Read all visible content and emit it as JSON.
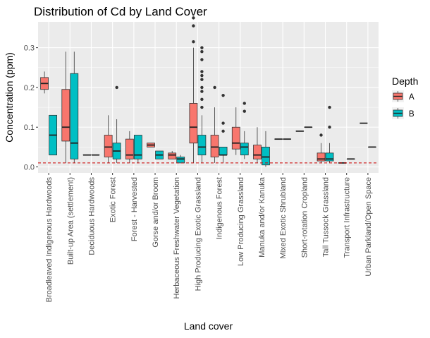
{
  "chart_data": {
    "type": "boxplot",
    "title": "Distribution of Cd by Land Cover",
    "xlabel": "Land cover",
    "ylabel": "Concentration (ppm)",
    "ylim": [
      -0.015,
      0.365
    ],
    "yticks": [
      0.0,
      0.1,
      0.2,
      0.3
    ],
    "ytick_labels": [
      "0.0",
      "0.1",
      "0.2",
      "0.3"
    ],
    "grid": true,
    "background": "#ebebeb",
    "reference_line": {
      "y": 0.01,
      "color": "#cc0000",
      "style": "dashed"
    },
    "legend": {
      "title": "Depth",
      "position": "right",
      "entries": [
        {
          "label": "A",
          "color": "#f8766d"
        },
        {
          "label": "B",
          "color": "#00bfc4"
        }
      ]
    },
    "categories": [
      "Broadleaved Indigenous Hardwoods",
      "Built-up Area (settlement)",
      "Deciduous Hardwoods",
      "Exotic Forest",
      "Forest - Harvested",
      "Gorse and/or Broom",
      "Herbaceous Freshwater Vegetation",
      "High Producing Exotic Grassland",
      "Indigenous Forest",
      "Low Producing Grassland",
      "Manuka and/or Kanuka",
      "Mixed Exotic Shrubland",
      "Short-rotation Cropland",
      "Tall Tussock Grassland",
      "Transport Infrastructure",
      "Urban Parkland/Open Space"
    ],
    "series": [
      {
        "name": "A",
        "color": "#f8766d",
        "boxes": [
          {
            "min": 0.185,
            "q1": 0.195,
            "median": 0.21,
            "q3": 0.225,
            "max": 0.24,
            "outliers": []
          },
          {
            "min": 0.01,
            "q1": 0.065,
            "median": 0.1,
            "q3": 0.195,
            "max": 0.29,
            "outliers": []
          },
          {
            "min": 0.03,
            "q1": 0.03,
            "median": 0.03,
            "q3": 0.03,
            "max": 0.03,
            "outliers": []
          },
          {
            "min": 0.01,
            "q1": 0.025,
            "median": 0.05,
            "q3": 0.08,
            "max": 0.13,
            "outliers": []
          },
          {
            "min": 0.01,
            "q1": 0.02,
            "median": 0.03,
            "q3": 0.07,
            "max": 0.09,
            "outliers": []
          },
          {
            "min": 0.05,
            "q1": 0.05,
            "median": 0.055,
            "q3": 0.06,
            "max": 0.06,
            "outliers": []
          },
          {
            "min": 0.02,
            "q1": 0.02,
            "median": 0.03,
            "q3": 0.035,
            "max": 0.04,
            "outliers": []
          },
          {
            "min": 0.01,
            "q1": 0.06,
            "median": 0.1,
            "q3": 0.16,
            "max": 0.3,
            "outliers": [
              0.315,
              0.355,
              0.375
            ]
          },
          {
            "min": 0.01,
            "q1": 0.025,
            "median": 0.05,
            "q3": 0.08,
            "max": 0.15,
            "outliers": [
              0.2
            ]
          },
          {
            "min": 0.03,
            "q1": 0.045,
            "median": 0.06,
            "q3": 0.1,
            "max": 0.15,
            "outliers": []
          },
          {
            "min": 0.01,
            "q1": 0.02,
            "median": 0.03,
            "q3": 0.055,
            "max": 0.1,
            "outliers": []
          },
          {
            "min": 0.07,
            "q1": 0.07,
            "median": 0.07,
            "q3": 0.07,
            "max": 0.07,
            "outliers": []
          },
          {
            "min": 0.09,
            "q1": 0.09,
            "median": 0.09,
            "q3": 0.09,
            "max": 0.09,
            "outliers": []
          },
          {
            "min": 0.01,
            "q1": 0.015,
            "median": 0.02,
            "q3": 0.035,
            "max": 0.06,
            "outliers": [
              0.08
            ]
          },
          {
            "min": 0.01,
            "q1": 0.01,
            "median": 0.01,
            "q3": 0.01,
            "max": 0.01,
            "outliers": []
          },
          null
        ]
      },
      {
        "name": "B",
        "color": "#00bfc4",
        "boxes": [
          {
            "min": 0.03,
            "q1": 0.03,
            "median": 0.08,
            "q3": 0.13,
            "max": 0.13,
            "outliers": []
          },
          {
            "min": 0.01,
            "q1": 0.02,
            "median": 0.06,
            "q3": 0.235,
            "max": 0.29,
            "outliers": []
          },
          {
            "min": 0.03,
            "q1": 0.03,
            "median": 0.03,
            "q3": 0.03,
            "max": 0.03,
            "outliers": []
          },
          {
            "min": 0.01,
            "q1": 0.02,
            "median": 0.04,
            "q3": 0.06,
            "max": 0.12,
            "outliers": [
              0.2
            ]
          },
          {
            "min": 0.01,
            "q1": 0.02,
            "median": 0.03,
            "q3": 0.08,
            "max": 0.08,
            "outliers": []
          },
          {
            "min": 0.02,
            "q1": 0.02,
            "median": 0.03,
            "q3": 0.04,
            "max": 0.04,
            "outliers": []
          },
          {
            "min": 0.01,
            "q1": 0.01,
            "median": 0.02,
            "q3": 0.025,
            "max": 0.03,
            "outliers": []
          },
          {
            "min": 0.01,
            "q1": 0.03,
            "median": 0.05,
            "q3": 0.08,
            "max": 0.13,
            "outliers": [
              0.15,
              0.17,
              0.19,
              0.2,
              0.22,
              0.23,
              0.24,
              0.27,
              0.29,
              0.3
            ]
          },
          {
            "min": 0.01,
            "q1": 0.03,
            "median": 0.03,
            "q3": 0.05,
            "max": 0.05,
            "outliers": [
              0.09,
              0.11,
              0.18
            ]
          },
          {
            "min": 0.02,
            "q1": 0.03,
            "median": 0.05,
            "q3": 0.06,
            "max": 0.09,
            "outliers": [
              0.14,
              0.16
            ]
          },
          {
            "min": 0.0,
            "q1": 0.005,
            "median": 0.025,
            "q3": 0.05,
            "max": 0.09,
            "outliers": []
          },
          {
            "min": 0.07,
            "q1": 0.07,
            "median": 0.07,
            "q3": 0.07,
            "max": 0.07,
            "outliers": []
          },
          {
            "min": 0.1,
            "q1": 0.1,
            "median": 0.1,
            "q3": 0.1,
            "max": 0.1,
            "outliers": []
          },
          {
            "min": 0.01,
            "q1": 0.015,
            "median": 0.02,
            "q3": 0.035,
            "max": 0.06,
            "outliers": [
              0.1,
              0.15
            ]
          },
          {
            "min": 0.02,
            "q1": 0.02,
            "median": 0.02,
            "q3": 0.02,
            "max": 0.02,
            "outliers": []
          },
          {
            "min": 0.05,
            "q1": 0.05,
            "median": 0.05,
            "q3": 0.05,
            "max": 0.05,
            "outliers": []
          }
        ]
      }
    ],
    "single_series_lines": [
      {
        "category": "Urban Parkland/Open Space",
        "series": "A",
        "value": 0.11
      }
    ]
  }
}
